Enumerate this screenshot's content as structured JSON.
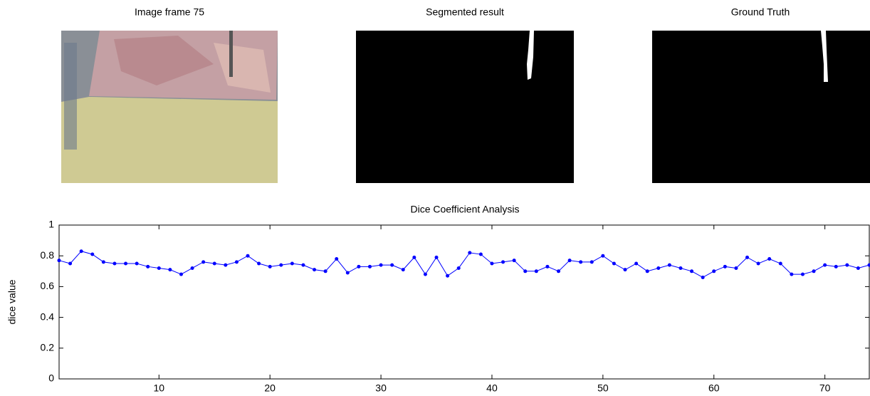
{
  "images": [
    {
      "title": "Image frame 75"
    },
    {
      "title": "Segmented result"
    },
    {
      "title": "Ground Truth"
    }
  ],
  "chart_data": {
    "type": "line",
    "title": "Dice Coefficient Analysis",
    "ylabel": "dice value",
    "x": [
      1,
      2,
      3,
      4,
      5,
      6,
      7,
      8,
      9,
      10,
      11,
      12,
      13,
      14,
      15,
      16,
      17,
      18,
      19,
      20,
      21,
      22,
      23,
      24,
      25,
      26,
      27,
      28,
      29,
      30,
      31,
      32,
      33,
      34,
      35,
      36,
      37,
      38,
      39,
      40,
      41,
      42,
      43,
      44,
      45,
      46,
      47,
      48,
      49,
      50,
      51,
      52,
      53,
      54,
      55,
      56,
      57,
      58,
      59,
      60,
      61,
      62,
      63,
      64,
      65,
      66,
      67,
      68,
      69,
      70,
      71,
      72,
      73,
      74
    ],
    "series": [
      {
        "color": "#0000ff",
        "values": [
          0.77,
          0.75,
          0.83,
          0.81,
          0.76,
          0.75,
          0.75,
          0.75,
          0.73,
          0.72,
          0.71,
          0.68,
          0.72,
          0.76,
          0.75,
          0.74,
          0.76,
          0.8,
          0.75,
          0.73,
          0.74,
          0.75,
          0.74,
          0.71,
          0.7,
          0.78,
          0.69,
          0.73,
          0.73,
          0.74,
          0.74,
          0.71,
          0.79,
          0.68,
          0.79,
          0.67,
          0.72,
          0.82,
          0.81,
          0.75,
          0.76,
          0.77,
          0.7,
          0.7,
          0.73,
          0.7,
          0.77,
          0.76,
          0.76,
          0.8,
          0.75,
          0.71,
          0.75,
          0.7,
          0.72,
          0.74,
          0.72,
          0.7,
          0.66,
          0.7,
          0.73,
          0.72,
          0.79,
          0.75,
          0.78,
          0.75,
          0.68,
          0.68,
          0.7,
          0.74,
          0.73,
          0.74,
          0.72,
          0.74
        ]
      }
    ],
    "xlim": [
      1,
      74
    ],
    "xticks": [
      10,
      20,
      30,
      40,
      50,
      60,
      70
    ],
    "ylim": [
      0,
      1
    ],
    "yticks": [
      0,
      0.2,
      0.4,
      0.6,
      0.8,
      1
    ],
    "grid": false
  }
}
